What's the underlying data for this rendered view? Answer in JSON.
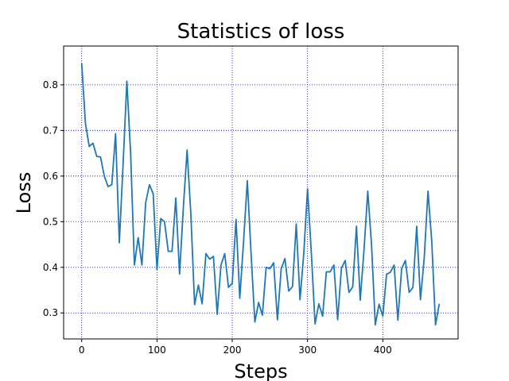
{
  "chart_data": {
    "type": "line",
    "title": "Statistics of loss",
    "xlabel": "Steps",
    "ylabel": "Loss",
    "xlim": [
      -24,
      500
    ],
    "ylim": [
      0.243,
      0.885
    ],
    "xticks": [
      0,
      100,
      200,
      300,
      400
    ],
    "yticks": [
      0.3,
      0.4,
      0.5,
      0.6,
      0.7,
      0.8
    ],
    "xtick_labels": [
      "0",
      "100",
      "200",
      "300",
      "400"
    ],
    "ytick_labels": [
      "0.3",
      "0.4",
      "0.5",
      "0.6",
      "0.7",
      "0.8"
    ],
    "grid": true,
    "grid_style": "dotted",
    "colors": {
      "line": "#1f77b4",
      "grid": "#0000cc",
      "axes": "#000000"
    },
    "series": [
      {
        "x": [
          0,
          5,
          10,
          15,
          20,
          25,
          30,
          35,
          40,
          45,
          50,
          55,
          60,
          65,
          70,
          75,
          80,
          85,
          90,
          95,
          100,
          105,
          110,
          115,
          120,
          125,
          130,
          135,
          140,
          145,
          150,
          155,
          160,
          165,
          170,
          175,
          180,
          185,
          190,
          195,
          200,
          205,
          210,
          215,
          220,
          225,
          230,
          235,
          240,
          245,
          250,
          255,
          260,
          265,
          270,
          275,
          280,
          285,
          290,
          295,
          300,
          305,
          310,
          315,
          320,
          325,
          330,
          335,
          340,
          345,
          350,
          355,
          360,
          365,
          370,
          375,
          380,
          385,
          390,
          395,
          400,
          405,
          410,
          415,
          420,
          425,
          430,
          435,
          440,
          445,
          450,
          455,
          460,
          465,
          470,
          475
        ],
        "y": [
          0.847,
          0.715,
          0.665,
          0.672,
          0.643,
          0.642,
          0.6,
          0.577,
          0.581,
          0.693,
          0.454,
          0.627,
          0.808,
          0.65,
          0.405,
          0.465,
          0.405,
          0.542,
          0.581,
          0.561,
          0.395,
          0.507,
          0.5,
          0.435,
          0.435,
          0.552,
          0.385,
          0.53,
          0.657,
          0.517,
          0.318,
          0.361,
          0.32,
          0.43,
          0.418,
          0.424,
          0.297,
          0.405,
          0.43,
          0.356,
          0.365,
          0.505,
          0.332,
          0.456,
          0.59,
          0.43,
          0.28,
          0.323,
          0.295,
          0.4,
          0.397,
          0.41,
          0.285,
          0.397,
          0.419,
          0.348,
          0.358,
          0.495,
          0.329,
          0.43,
          0.572,
          0.433,
          0.276,
          0.32,
          0.293,
          0.39,
          0.39,
          0.405,
          0.285,
          0.398,
          0.415,
          0.345,
          0.357,
          0.49,
          0.328,
          0.438,
          0.567,
          0.45,
          0.274,
          0.319,
          0.293,
          0.385,
          0.389,
          0.405,
          0.284,
          0.397,
          0.415,
          0.345,
          0.356,
          0.49,
          0.329,
          0.42,
          0.567,
          0.457,
          0.274,
          0.32
        ]
      }
    ]
  }
}
